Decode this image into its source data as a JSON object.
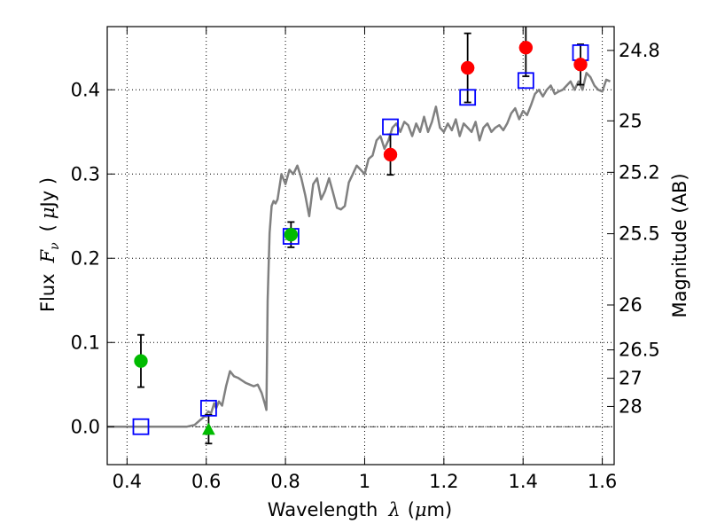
{
  "chart_data": {
    "type": "scatter",
    "title": "",
    "xlabel": "Wavelength",
    "xlabel_symbol": "λ",
    "xlabel_unit_open": "(",
    "xlabel_unit_mu": "μ",
    "xlabel_unit_rest": "m)",
    "ylabel": "Flux",
    "ylabel_symbol": "F",
    "ylabel_subscript": "ν",
    "ylabel_unit_open": "(",
    "ylabel_unit_mu": "μ",
    "ylabel_unit_rest": "Jy )",
    "y2label": "Magnitude (AB)",
    "xlim": [
      0.35,
      1.63
    ],
    "ylim": [
      -0.045,
      0.475
    ],
    "grid": true,
    "x_ticks": [
      {
        "value": 0.4,
        "label": "0.4"
      },
      {
        "value": 0.6,
        "label": "0.6"
      },
      {
        "value": 0.8,
        "label": "0.8"
      },
      {
        "value": 1.0,
        "label": "1"
      },
      {
        "value": 1.2,
        "label": "1.2"
      },
      {
        "value": 1.4,
        "label": "1.4"
      },
      {
        "value": 1.6,
        "label": "1.6"
      }
    ],
    "y_ticks": [
      {
        "value": 0.0,
        "label": "0.0"
      },
      {
        "value": 0.1,
        "label": "0.1"
      },
      {
        "value": 0.2,
        "label": "0.2"
      },
      {
        "value": 0.3,
        "label": "0.3"
      },
      {
        "value": 0.4,
        "label": "0.4"
      }
    ],
    "y2_ticks": [
      {
        "flux": 0.4467,
        "label": "24.8"
      },
      {
        "flux": 0.3631,
        "label": "25"
      },
      {
        "flux": 0.302,
        "label": "25.2"
      },
      {
        "flux": 0.2291,
        "label": "25.5"
      },
      {
        "flux": 0.1445,
        "label": "26"
      },
      {
        "flux": 0.0912,
        "label": "26.5"
      },
      {
        "flux": 0.0575,
        "label": "27"
      },
      {
        "flux": 0.024,
        "label": "28"
      }
    ],
    "colors": {
      "model": "#808080",
      "red": "#ff0000",
      "green": "#00bb00",
      "blue": "#0000ff",
      "error": "#000000",
      "grid": "#000000"
    },
    "model_spectrum": {
      "x": [
        0.35,
        0.55,
        0.57,
        0.585,
        0.595,
        0.605,
        0.612,
        0.62,
        0.625,
        0.632,
        0.64,
        0.65,
        0.66,
        0.67,
        0.68,
        0.69,
        0.7,
        0.71,
        0.72,
        0.73,
        0.74,
        0.748,
        0.752,
        0.755,
        0.76,
        0.765,
        0.77,
        0.775,
        0.78,
        0.79,
        0.8,
        0.81,
        0.82,
        0.83,
        0.84,
        0.85,
        0.86,
        0.87,
        0.88,
        0.89,
        0.9,
        0.91,
        0.92,
        0.93,
        0.94,
        0.95,
        0.96,
        0.97,
        0.98,
        0.99,
        1.0,
        1.01,
        1.02,
        1.03,
        1.04,
        1.05,
        1.06,
        1.07,
        1.08,
        1.09,
        1.1,
        1.11,
        1.12,
        1.13,
        1.14,
        1.15,
        1.16,
        1.17,
        1.18,
        1.19,
        1.2,
        1.21,
        1.22,
        1.23,
        1.24,
        1.25,
        1.26,
        1.27,
        1.28,
        1.29,
        1.3,
        1.31,
        1.32,
        1.33,
        1.34,
        1.35,
        1.36,
        1.37,
        1.38,
        1.39,
        1.4,
        1.41,
        1.42,
        1.43,
        1.44,
        1.45,
        1.46,
        1.47,
        1.48,
        1.49,
        1.5,
        1.51,
        1.52,
        1.53,
        1.54,
        1.55,
        1.56,
        1.57,
        1.58,
        1.59,
        1.6,
        1.61,
        1.62
      ],
      "y": [
        0.0,
        0.0,
        0.002,
        0.008,
        0.012,
        0.018,
        0.016,
        0.028,
        0.022,
        0.03,
        0.025,
        0.048,
        0.066,
        0.06,
        0.058,
        0.055,
        0.052,
        0.05,
        0.048,
        0.05,
        0.04,
        0.027,
        0.02,
        0.15,
        0.23,
        0.262,
        0.268,
        0.265,
        0.27,
        0.3,
        0.288,
        0.305,
        0.3,
        0.31,
        0.295,
        0.275,
        0.25,
        0.288,
        0.295,
        0.27,
        0.28,
        0.295,
        0.278,
        0.26,
        0.258,
        0.262,
        0.29,
        0.3,
        0.31,
        0.305,
        0.3,
        0.318,
        0.322,
        0.34,
        0.345,
        0.33,
        0.34,
        0.355,
        0.36,
        0.35,
        0.362,
        0.358,
        0.345,
        0.36,
        0.35,
        0.368,
        0.35,
        0.362,
        0.38,
        0.355,
        0.35,
        0.36,
        0.352,
        0.365,
        0.345,
        0.36,
        0.355,
        0.35,
        0.362,
        0.34,
        0.355,
        0.36,
        0.35,
        0.355,
        0.358,
        0.352,
        0.36,
        0.372,
        0.378,
        0.365,
        0.375,
        0.37,
        0.382,
        0.395,
        0.4,
        0.392,
        0.4,
        0.405,
        0.395,
        0.398,
        0.4,
        0.405,
        0.41,
        0.4,
        0.41,
        0.4,
        0.42,
        0.415,
        0.405,
        0.4,
        0.398,
        0.412,
        0.41
      ]
    },
    "observed_red": [
      {
        "x": 1.065,
        "y": 0.323,
        "err": 0.024
      },
      {
        "x": 1.26,
        "y": 0.426,
        "err": 0.041
      },
      {
        "x": 1.407,
        "y": 0.45,
        "err": 0.034
      },
      {
        "x": 1.545,
        "y": 0.43,
        "err": 0.024
      }
    ],
    "observed_green": [
      {
        "x": 0.435,
        "y": 0.078,
        "err": 0.031
      },
      {
        "x": 0.814,
        "y": 0.228,
        "err": 0.015
      }
    ],
    "upper_limit_green": [
      {
        "x": 0.606,
        "y": -0.003,
        "err": 0.017
      }
    ],
    "model_photometry_blue": [
      {
        "x": 0.435,
        "y": 0.0
      },
      {
        "x": 0.606,
        "y": 0.022
      },
      {
        "x": 0.814,
        "y": 0.226
      },
      {
        "x": 1.065,
        "y": 0.356
      },
      {
        "x": 1.26,
        "y": 0.391
      },
      {
        "x": 1.407,
        "y": 0.411
      },
      {
        "x": 1.545,
        "y": 0.444
      }
    ]
  }
}
